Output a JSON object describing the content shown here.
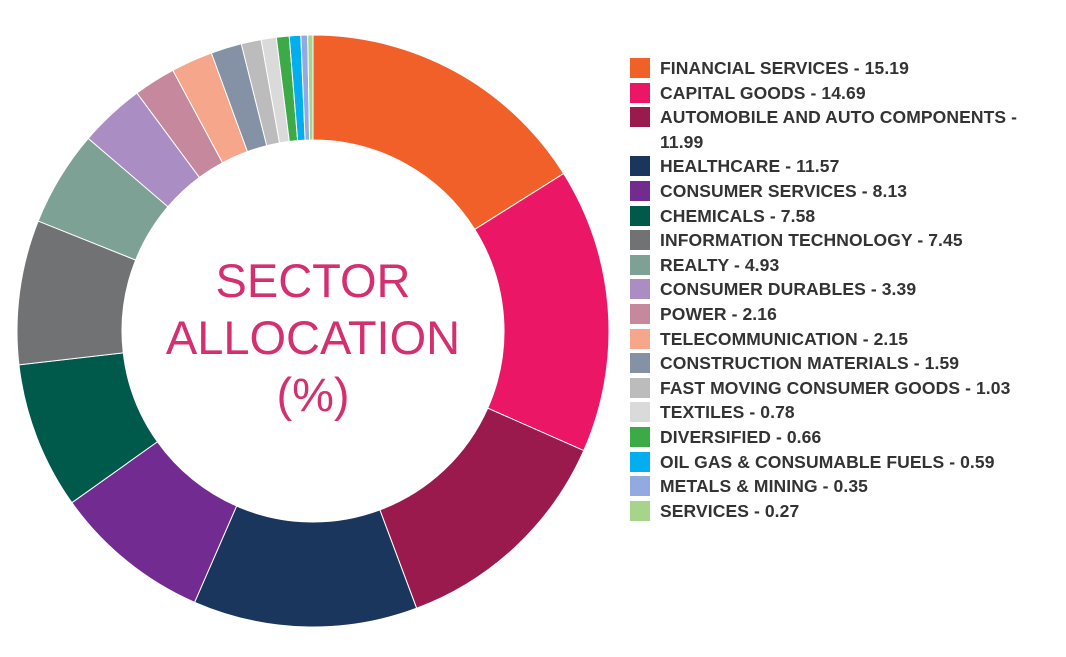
{
  "chart_data": {
    "type": "pie",
    "title": "SECTOR ALLOCATION (%)",
    "title_lines": [
      "SECTOR",
      "ALLOCATION",
      "(%)"
    ],
    "legend_position": "right",
    "slices": [
      {
        "label": "FINANCIAL SERVICES - 15.19",
        "value": 15.19,
        "color": "#f2602a"
      },
      {
        "label": "CAPITAL GOODS - 14.69",
        "value": 14.69,
        "color": "#ec1667"
      },
      {
        "label": "AUTOMOBILE AND AUTO COMPONENTS - 11.99",
        "value": 11.99,
        "color": "#9a1a4e"
      },
      {
        "label": "HEALTHCARE - 11.57",
        "value": 11.57,
        "color": "#1b365d"
      },
      {
        "label": "CONSUMER SERVICES - 8.13",
        "value": 8.13,
        "color": "#722c91"
      },
      {
        "label": "CHEMICALS - 7.58",
        "value": 7.58,
        "color": "#005a4b"
      },
      {
        "label": "INFORMATION TECHNOLOGY - 7.45",
        "value": 7.45,
        "color": "#717274"
      },
      {
        "label": "REALTY - 4.93",
        "value": 4.93,
        "color": "#7ea196"
      },
      {
        "label": "CONSUMER DURABLES - 3.39",
        "value": 3.39,
        "color": "#a98dc3"
      },
      {
        "label": "POWER - 2.16",
        "value": 2.16,
        "color": "#c5889c"
      },
      {
        "label": "TELECOMMUNICATION - 2.15",
        "value": 2.15,
        "color": "#f6a68a"
      },
      {
        "label": "CONSTRUCTION MATERIALS - 1.59",
        "value": 1.59,
        "color": "#8592a5"
      },
      {
        "label": "FAST MOVING CONSUMER GOODS - 1.03",
        "value": 1.03,
        "color": "#bcbcbc"
      },
      {
        "label": "TEXTILES - 0.78",
        "value": 0.78,
        "color": "#dadada"
      },
      {
        "label": "DIVERSIFIED - 0.66",
        "value": 0.66,
        "color": "#3cab47"
      },
      {
        "label": "OIL GAS & CONSUMABLE FUELS - 0.59",
        "value": 0.59,
        "color": "#03aeef"
      },
      {
        "label": "METALS & MINING - 0.35",
        "value": 0.35,
        "color": "#92aadf"
      },
      {
        "label": "SERVICES - 0.27",
        "value": 0.27,
        "color": "#a6d48c"
      }
    ]
  }
}
